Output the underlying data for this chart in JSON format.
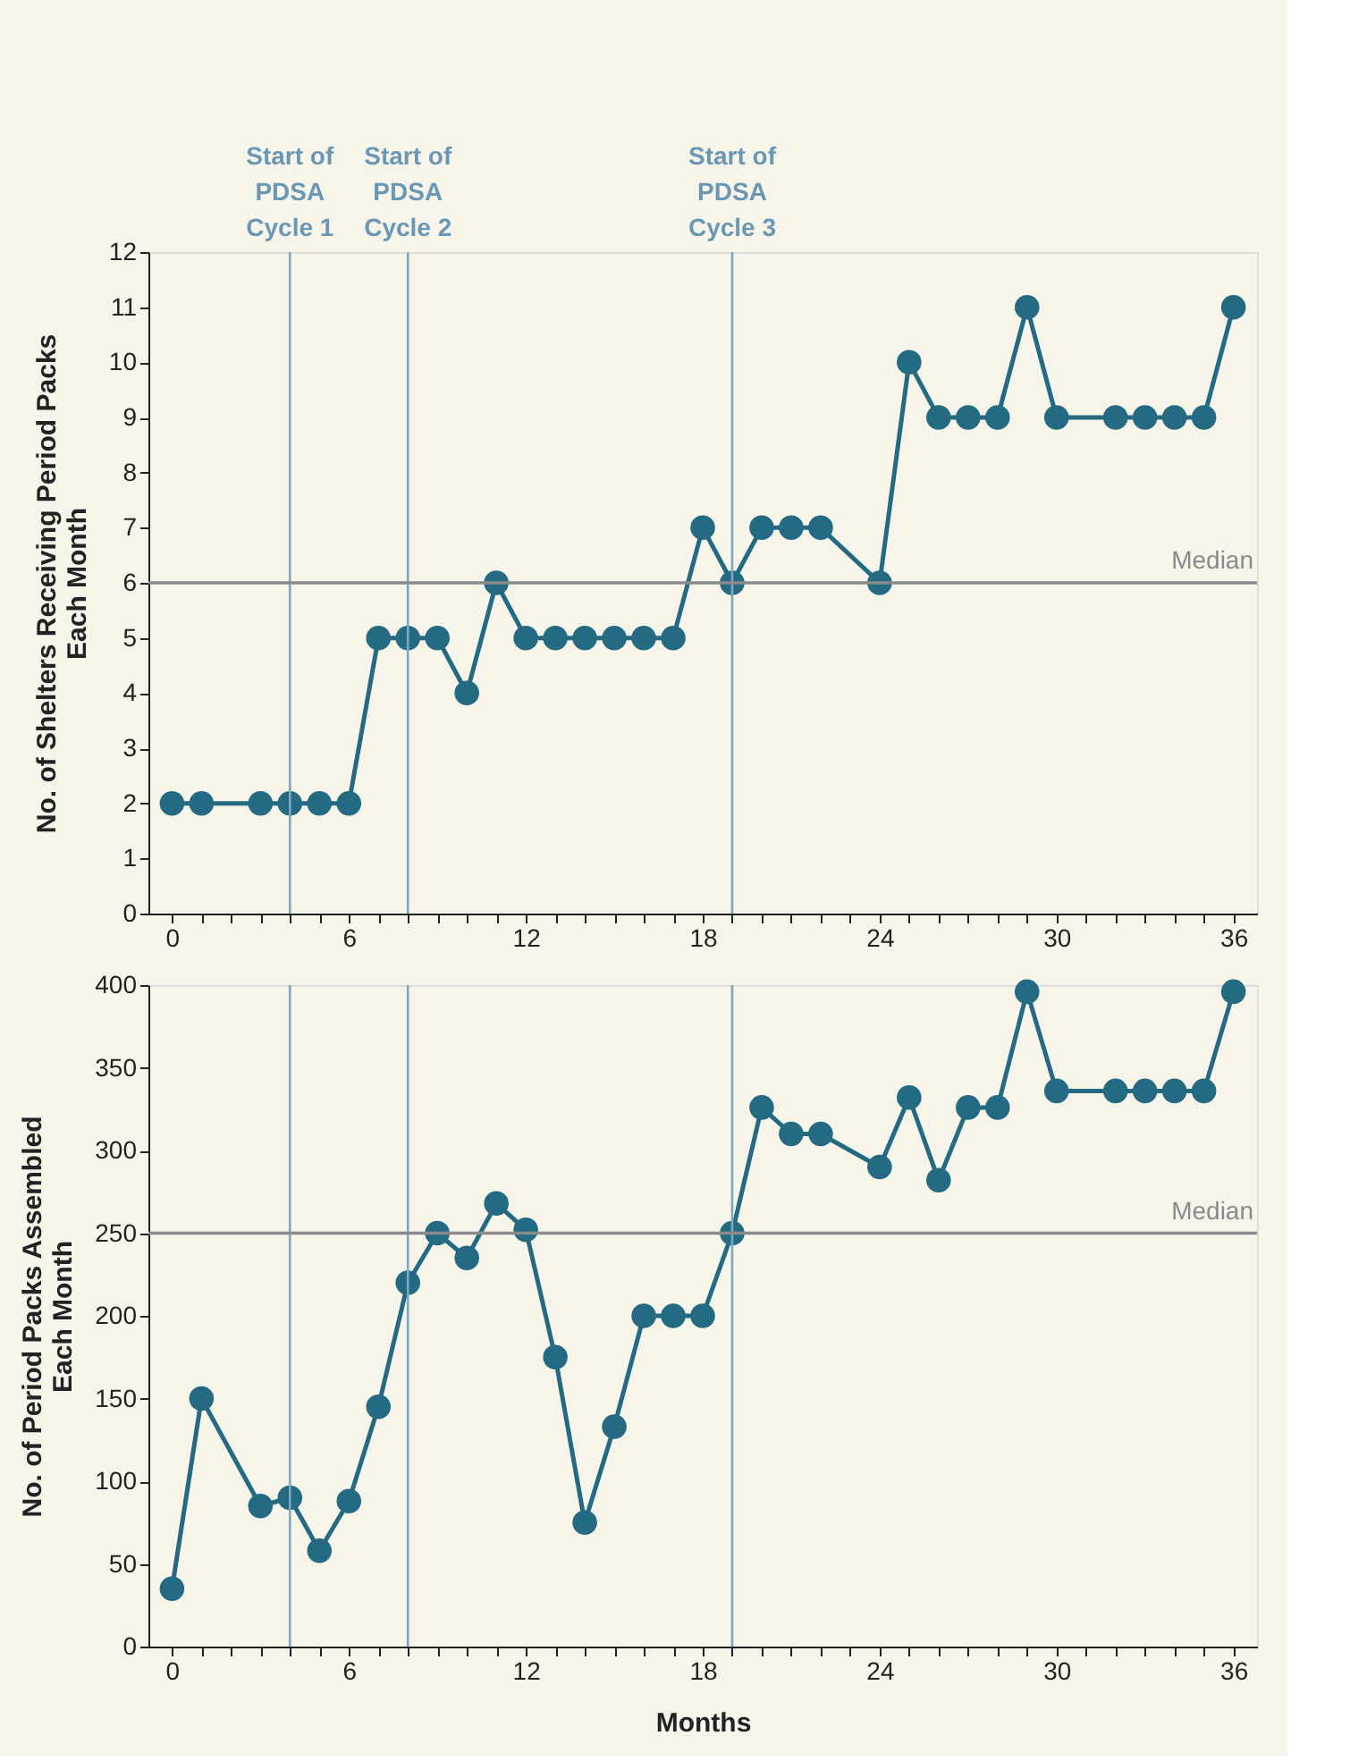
{
  "chart_data": [
    {
      "type": "line",
      "ylabel": "No. of Shelters Receiving Period Packs\nEach Month",
      "marker": "circle",
      "line_style": "solid",
      "grid": false,
      "xlim": [
        -0.8,
        36.8
      ],
      "ylim": [
        0,
        12
      ],
      "yticks": [
        0,
        1,
        2,
        3,
        4,
        5,
        6,
        7,
        8,
        9,
        10,
        11,
        12
      ],
      "xticks": [
        0,
        {
          "value": 1,
          "label": null
        },
        {
          "value": 2,
          "label": null
        },
        {
          "value": 3,
          "label": null
        },
        {
          "value": 4,
          "label": null
        },
        {
          "value": 5,
          "label": null
        },
        6,
        {
          "value": 7,
          "label": null
        },
        {
          "value": 8,
          "label": null
        },
        {
          "value": 9,
          "label": null
        },
        {
          "value": 10,
          "label": null
        },
        {
          "value": 11,
          "label": null
        },
        12,
        {
          "value": 13,
          "label": null
        },
        {
          "value": 14,
          "label": null
        },
        {
          "value": 15,
          "label": null
        },
        {
          "value": 16,
          "label": null
        },
        {
          "value": 17,
          "label": null
        },
        18,
        {
          "value": 19,
          "label": null
        },
        {
          "value": 20,
          "label": null
        },
        {
          "value": 21,
          "label": null
        },
        {
          "value": 22,
          "label": null
        },
        {
          "value": 23,
          "label": null
        },
        24,
        {
          "value": 25,
          "label": null
        },
        {
          "value": 26,
          "label": null
        },
        {
          "value": 27,
          "label": null
        },
        {
          "value": 28,
          "label": null
        },
        {
          "value": 29,
          "label": null
        },
        30,
        {
          "value": 31,
          "label": null
        },
        {
          "value": 32,
          "label": null
        },
        {
          "value": 33,
          "label": null
        },
        {
          "value": 34,
          "label": null
        },
        {
          "value": 35,
          "label": null
        },
        36
      ],
      "x": [
        0,
        1,
        3,
        4,
        5,
        6,
        7,
        8,
        9,
        10,
        11,
        12,
        13,
        14,
        15,
        16,
        17,
        18,
        19,
        20,
        21,
        22,
        24,
        25,
        26,
        27,
        28,
        29,
        30,
        32,
        33,
        34,
        35,
        36
      ],
      "series": [
        {
          "color": "#236a82",
          "values": [
            2,
            2,
            2,
            2,
            2,
            2,
            5,
            5,
            5,
            4,
            6,
            5,
            5,
            5,
            5,
            5,
            5,
            7,
            6,
            7,
            7,
            7,
            6,
            10,
            9,
            9,
            9,
            11,
            9,
            9,
            9,
            9,
            9,
            11
          ]
        }
      ],
      "ref_lines": [
        {
          "axis": "x",
          "value": 4,
          "label": "Start of\nPDSA\nCycle 1",
          "color": "#7fa7c0"
        },
        {
          "axis": "x",
          "value": 8,
          "label": "Start of\nPDSA\nCycle 2",
          "color": "#7fa7c0"
        },
        {
          "axis": "x",
          "value": 19,
          "label": "Start of\nPDSA\nCycle 3",
          "color": "#7fa7c0"
        },
        {
          "axis": "y",
          "value": 6,
          "label": "Median",
          "color": "#8a8a8a"
        }
      ]
    },
    {
      "type": "line",
      "xlabel": "Months",
      "ylabel": "No. of Period Packs Assembled\nEach Month",
      "marker": "circle",
      "line_style": "solid",
      "grid": false,
      "xlim": [
        -0.8,
        36.8
      ],
      "ylim": [
        0,
        400
      ],
      "yticks": [
        0,
        50,
        100,
        150,
        200,
        250,
        300,
        350,
        400
      ],
      "xticks": [
        0,
        {
          "value": 1,
          "label": null
        },
        {
          "value": 2,
          "label": null
        },
        {
          "value": 3,
          "label": null
        },
        {
          "value": 4,
          "label": null
        },
        {
          "value": 5,
          "label": null
        },
        6,
        {
          "value": 7,
          "label": null
        },
        {
          "value": 8,
          "label": null
        },
        {
          "value": 9,
          "label": null
        },
        {
          "value": 10,
          "label": null
        },
        {
          "value": 11,
          "label": null
        },
        12,
        {
          "value": 13,
          "label": null
        },
        {
          "value": 14,
          "label": null
        },
        {
          "value": 15,
          "label": null
        },
        {
          "value": 16,
          "label": null
        },
        {
          "value": 17,
          "label": null
        },
        18,
        {
          "value": 19,
          "label": null
        },
        {
          "value": 20,
          "label": null
        },
        {
          "value": 21,
          "label": null
        },
        {
          "value": 22,
          "label": null
        },
        {
          "value": 23,
          "label": null
        },
        24,
        {
          "value": 25,
          "label": null
        },
        {
          "value": 26,
          "label": null
        },
        {
          "value": 27,
          "label": null
        },
        {
          "value": 28,
          "label": null
        },
        {
          "value": 29,
          "label": null
        },
        30,
        {
          "value": 31,
          "label": null
        },
        {
          "value": 32,
          "label": null
        },
        {
          "value": 33,
          "label": null
        },
        {
          "value": 34,
          "label": null
        },
        {
          "value": 35,
          "label": null
        },
        36
      ],
      "x": [
        0,
        1,
        3,
        4,
        5,
        6,
        7,
        8,
        9,
        10,
        11,
        12,
        13,
        14,
        15,
        16,
        17,
        18,
        19,
        20,
        21,
        22,
        24,
        25,
        26,
        27,
        28,
        29,
        30,
        32,
        33,
        34,
        35,
        36
      ],
      "series": [
        {
          "color": "#236a82",
          "values": [
            35,
            150,
            85,
            90,
            58,
            88,
            145,
            220,
            250,
            235,
            268,
            252,
            175,
            75,
            133,
            200,
            200,
            200,
            250,
            326,
            310,
            310,
            290,
            332,
            282,
            326,
            326,
            396,
            336,
            336,
            336,
            336,
            336,
            396
          ]
        }
      ],
      "ref_lines": [
        {
          "axis": "x",
          "value": 4,
          "label": null,
          "color": "#7fa7c0"
        },
        {
          "axis": "x",
          "value": 8,
          "label": null,
          "color": "#7fa7c0"
        },
        {
          "axis": "x",
          "value": 19,
          "label": null,
          "color": "#7fa7c0"
        },
        {
          "axis": "y",
          "value": 250,
          "label": "Median",
          "color": "#8a8a8a"
        }
      ]
    }
  ]
}
